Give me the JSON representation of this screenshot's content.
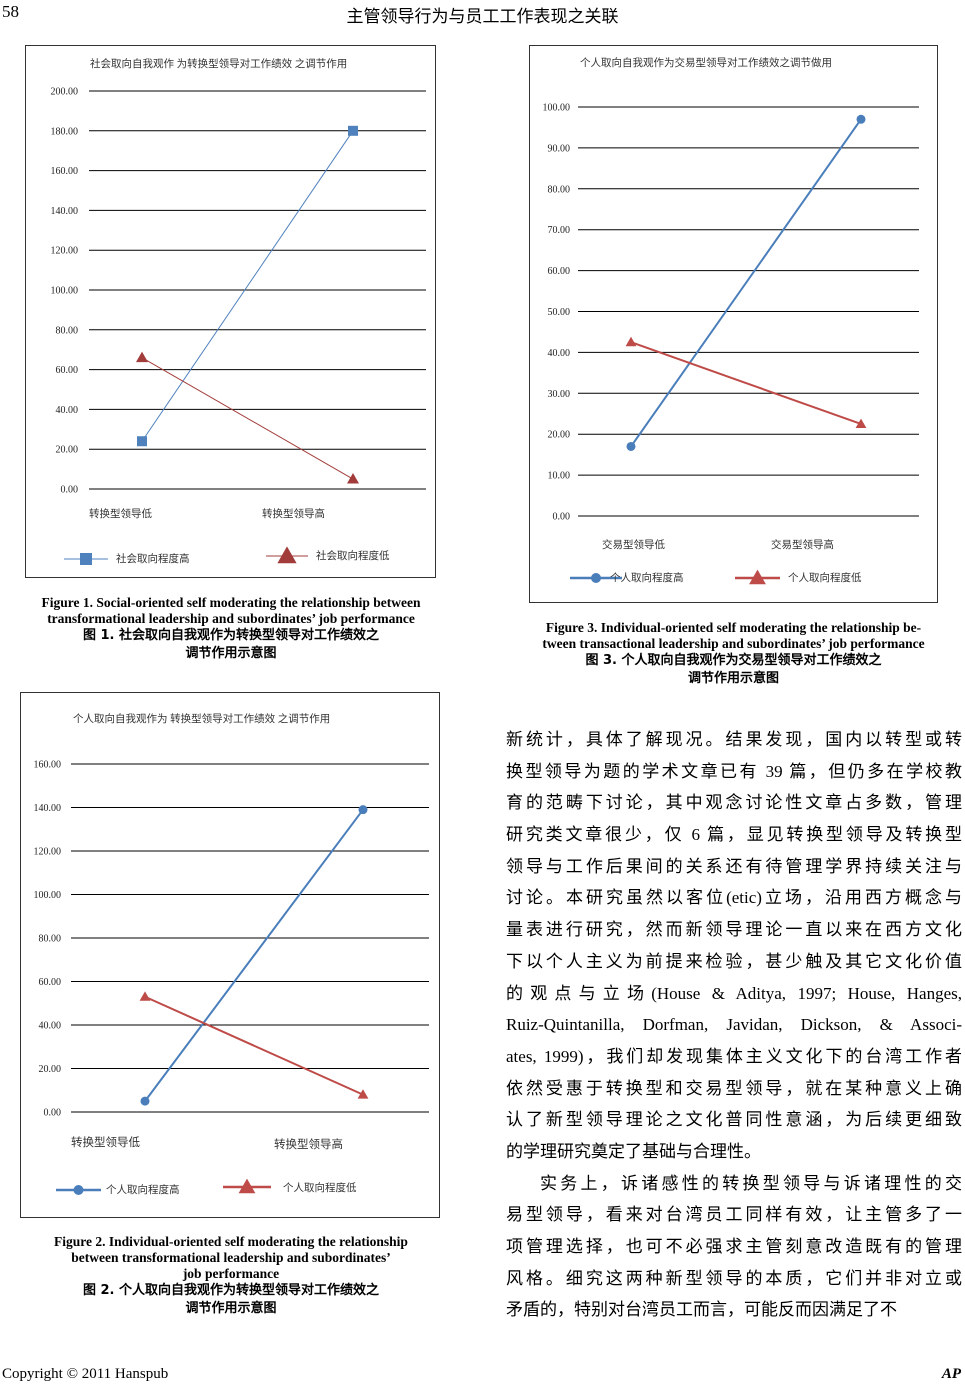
{
  "header": {
    "page_number": "58",
    "running_title": "主管领导行为与员工工作表现之关联"
  },
  "chart_data": [
    {
      "type": "line",
      "title": "社会取向自我观作  为转换型领导对工作绩效  之调节作用",
      "categories": [
        "转换型领导低",
        "转换型领导高"
      ],
      "ylim": [
        0,
        200
      ],
      "ytick_labels": [
        "0.00",
        "20.00",
        "40.00",
        "60.00",
        "80.00",
        "100.00",
        "120.00",
        "140.00",
        "160.00",
        "180.00",
        "200.00"
      ],
      "grid": true,
      "legend_position": "bottom",
      "series": [
        {
          "name": "社会取向程度高",
          "values": [
            24,
            180
          ],
          "marker": "square",
          "color": "#4f81bd"
        },
        {
          "name": "社会取向程度低",
          "values": [
            66,
            5
          ],
          "marker": "triangle",
          "color": "#a23c3a"
        }
      ]
    },
    {
      "type": "line",
      "title": "个人取向自我观作为  转换型领导对工作绩效  之调节作用",
      "categories": [
        "转换型领导低",
        "转换型领导高"
      ],
      "ylim": [
        0,
        160
      ],
      "ytick_labels": [
        "0.00",
        "20.00",
        "40.00",
        "60.00",
        "80.00",
        "100.00",
        "120.00",
        "140.00",
        "160.00"
      ],
      "grid": true,
      "legend_position": "bottom",
      "series": [
        {
          "name": "个人取向程度高",
          "values": [
            5,
            139
          ],
          "marker": "circle",
          "color": "#4a7ebb"
        },
        {
          "name": "个人取向程度低",
          "values": [
            53,
            8
          ],
          "marker": "triangle",
          "color": "#be4b48"
        }
      ]
    },
    {
      "type": "line",
      "title": "个人取向自我观作为交易型领导对工作绩效之调节做用",
      "categories": [
        "交易型领导低",
        "交易型领导高"
      ],
      "ylim": [
        0,
        100
      ],
      "ytick_labels": [
        "0.00",
        "10.00",
        "20.00",
        "30.00",
        "40.00",
        "50.00",
        "60.00",
        "70.00",
        "80.00",
        "90.00",
        "100.00"
      ],
      "grid": true,
      "legend_position": "bottom",
      "series": [
        {
          "name": "个人取向程度高",
          "values": [
            17,
            97
          ],
          "marker": "circle",
          "color": "#4a7ebb"
        },
        {
          "name": "个人取向程度低",
          "values": [
            42.5,
            22.5
          ],
          "marker": "triangle",
          "color": "#be4b48"
        }
      ]
    }
  ],
  "captions": {
    "fig1_en_1": "Figure 1. Social-oriented self moderating the relationship between",
    "fig1_en_2": "transformational leadership and subordinates’ job performance",
    "fig1_cn_1": "图 1.  社会取向自我观作为转换型领导对工作绩效之",
    "fig1_cn_2": "调节作用示意图",
    "fig2_en_1": "Figure 2. Individual-oriented self moderating the relationship",
    "fig2_en_2": "between transformational leadership and subordinates’",
    "fig2_en_3": "job performance",
    "fig2_cn_1": "图 2.  个人取向自我观作为转换型领导对工作绩效之",
    "fig2_cn_2": "调节作用示意图",
    "fig3_en_1": "Figure 3. Individual-oriented self moderating the relationship be-",
    "fig3_en_2": "tween transactional leadership and subordinates’ job performance",
    "fig3_cn_1": "图 3.  个人取向自我观作为交易型领导对工作绩效之",
    "fig3_cn_2": "调节作用示意图"
  },
  "body": {
    "lines": [
      "新统计，具体了解现况。结果发现，国内以转型或转",
      "换型领导为题的学术文章已有 39 篇，但仍多在学校教",
      "育的范畴下讨论，其中观念讨论性文章占多数，管理",
      "研究类文章很少，仅 6 篇，显见转换型领导及转换型",
      "领导与工作后果间的关系还有待管理学界持续关注与",
      "讨论。本研究虽然以客位(etic)立场，沿用西方概念与",
      "量表进行研究，然而新领导理论一直以来在西方文化",
      "下以个人主义为前提来检验，甚少触及其它文化价值",
      "的观点与立场(House & Aditya, 1997; House, Hanges,",
      "Ruiz-Quintanilla, Dorfman, Javidan, Dickson, & Associ-",
      "ates, 1999)，我们却发现集体主义文化下的台湾工作者",
      "依然受惠于转换型和交易型领导，就在某种意义上确",
      "认了新型领导理论之文化普同性意涵，为后续更细致",
      "的学理研究奠定了基础与合理性。",
      "实务上，诉诸感性的转换型领导与诉诸理性的交",
      "易型领导，看来对台湾员工同样有效，让主管多了一",
      "项管理选择，也可不必强求主管刻意改造既有的管理",
      "风格。细究这两种新型领导的本质，它们并非对立或",
      "矛盾的，特别对台湾员工而言，可能反而因满足了不"
    ]
  },
  "footer": {
    "copyright": "Copyright © 2011 Hanspub",
    "journal": "AP"
  }
}
